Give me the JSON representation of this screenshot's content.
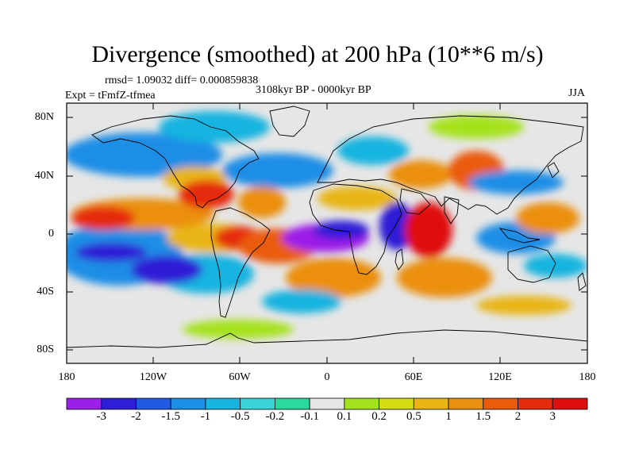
{
  "title": "Divergence (smoothed) at 200 hPa (10**6 m/s)",
  "stats": "rmsd= 1.09032 diff= 0.000859838",
  "experiment": "Expt = tFmfZ-tfmea",
  "period": "3108kyr BP - 0000kyr BP",
  "season": "JJA",
  "lat_labels": [
    "80N",
    "40N",
    "0",
    "40S",
    "80S"
  ],
  "lon_labels": [
    "180",
    "120W",
    "60W",
    "0",
    "60E",
    "120E",
    "180"
  ],
  "colorbar": {
    "labels": [
      "-3",
      "-2",
      "-1.5",
      "-1",
      "-0.5",
      "-0.2",
      "-0.1",
      "0.1",
      "0.2",
      "0.5",
      "1",
      "1.5",
      "2",
      "3"
    ],
    "colors": [
      "#9b1fe8",
      "#2e1fd6",
      "#1f5be0",
      "#1c8ee6",
      "#17b4e0",
      "#3ad3d6",
      "#29d9a0",
      "#e6e6e6",
      "#a5e21e",
      "#d4dd14",
      "#e8b512",
      "#eb8f0f",
      "#ea5b0c",
      "#e62a0c",
      "#e00f0f"
    ]
  },
  "colors": {
    "land_outline": "#000000",
    "neutral": "#e6e6e6"
  }
}
